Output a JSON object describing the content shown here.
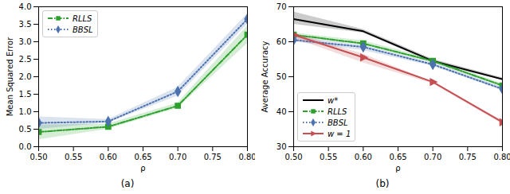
{
  "chart_data": [
    {
      "type": "line",
      "caption": "(a)",
      "x_label": "ρ",
      "y_label": "Mean Squared Error",
      "x": [
        0.5,
        0.6,
        0.7,
        0.8
      ],
      "xlim": [
        0.5,
        0.8
      ],
      "xticks": [
        {
          "value": 0.5,
          "label": "0.50"
        },
        {
          "value": 0.55,
          "label": "0.55"
        },
        {
          "value": 0.6,
          "label": "0.60"
        },
        {
          "value": 0.65,
          "label": "0.65"
        },
        {
          "value": 0.7,
          "label": "0.70"
        },
        {
          "value": 0.75,
          "label": "0.75"
        },
        {
          "value": 0.8,
          "label": "0.80"
        }
      ],
      "ylim": [
        0,
        4
      ],
      "yticks": [
        {
          "value": 0,
          "label": "0.0"
        },
        {
          "value": 0.5,
          "label": "0.5"
        },
        {
          "value": 1,
          "label": "1.0"
        },
        {
          "value": 1.5,
          "label": "1.5"
        },
        {
          "value": 2,
          "label": "2.0"
        },
        {
          "value": 2.5,
          "label": "2.5"
        },
        {
          "value": 3,
          "label": "3.0"
        },
        {
          "value": 3.5,
          "label": "3.5"
        },
        {
          "value": 4,
          "label": "4.0"
        }
      ],
      "grid": false,
      "legend": "upper left",
      "series": [
        {
          "name": "RLLS",
          "color": "#2ca02c",
          "marker": "square",
          "line_style": "dashdot",
          "values": [
            0.42,
            0.57,
            1.17,
            3.2
          ],
          "lower": [
            0.2,
            0.5,
            1.1,
            2.95
          ],
          "upper": [
            0.62,
            0.65,
            1.25,
            3.45
          ]
        },
        {
          "name": "BBSL",
          "color": "#4c72b0",
          "marker": "diamond",
          "line_style": "dotted",
          "values": [
            0.68,
            0.72,
            1.58,
            3.65
          ],
          "lower": [
            0.5,
            0.68,
            1.45,
            3.5
          ],
          "upper": [
            0.85,
            0.78,
            1.7,
            3.8
          ]
        }
      ]
    },
    {
      "type": "line",
      "caption": "(b)",
      "x_label": "ρ",
      "y_label": "Average Accuracy",
      "x": [
        0.5,
        0.6,
        0.7,
        0.8
      ],
      "xlim": [
        0.5,
        0.8
      ],
      "xticks": [
        {
          "value": 0.5,
          "label": "0.50"
        },
        {
          "value": 0.55,
          "label": "0.55"
        },
        {
          "value": 0.6,
          "label": "0.60"
        },
        {
          "value": 0.65,
          "label": "0.65"
        },
        {
          "value": 0.7,
          "label": "0.70"
        },
        {
          "value": 0.75,
          "label": "0.75"
        },
        {
          "value": 0.8,
          "label": "0.80"
        }
      ],
      "ylim": [
        30,
        70
      ],
      "yticks": [
        30,
        40,
        50,
        60,
        70
      ],
      "grid": false,
      "legend": "lower left",
      "series": [
        {
          "name": "w*",
          "color": "#000000",
          "line_style": "solid",
          "values": [
            66.5,
            63,
            54.5,
            49.3
          ],
          "lower": [
            65,
            62.5,
            54,
            49
          ],
          "upper": [
            68.5,
            63.5,
            55,
            49.7
          ]
        },
        {
          "name": "RLLS",
          "color": "#2ca02c",
          "marker": "square",
          "line_style": "dashdot",
          "values": [
            62,
            59.5,
            54.5,
            47.5
          ],
          "lower": [
            61.5,
            59,
            54,
            47
          ],
          "upper": [
            62.5,
            60.3,
            55,
            48
          ]
        },
        {
          "name": "BBSL",
          "color": "#4c72b0",
          "marker": "diamond",
          "line_style": "dotted",
          "values": [
            60.5,
            58.5,
            53.5,
            46.5
          ],
          "lower": [
            60,
            57.5,
            53,
            46
          ],
          "upper": [
            61.5,
            59,
            54,
            47
          ]
        },
        {
          "name": "w = 1",
          "color": "#c44e52",
          "marker": "triangle-right",
          "line_style": "solid",
          "values": [
            62,
            55.5,
            48.5,
            37
          ],
          "lower": [
            61,
            54,
            48,
            36.5
          ],
          "upper": [
            62.5,
            56.5,
            48.5,
            37.5
          ]
        }
      ]
    }
  ]
}
